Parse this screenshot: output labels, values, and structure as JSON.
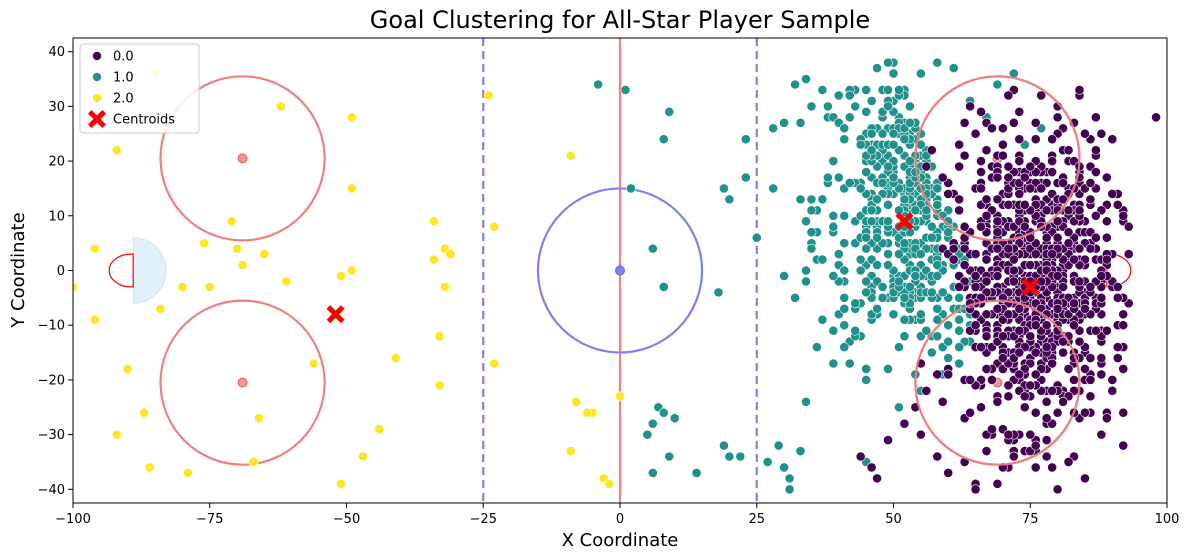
{
  "chart_data": {
    "type": "scatter",
    "title": "Goal Clustering for All-Star Player Sample",
    "xlabel": "X Coordinate",
    "ylabel": "Y Coordinate",
    "xlim": [
      -100,
      100
    ],
    "ylim": [
      -42.5,
      42.5
    ],
    "xticks": [
      -100,
      -75,
      -50,
      -25,
      0,
      25,
      50,
      75,
      100
    ],
    "xtick_labels": [
      "−100",
      "−75",
      "−50",
      "−25",
      "0",
      "25",
      "50",
      "75",
      "100"
    ],
    "yticks": [
      -40,
      -30,
      -20,
      -10,
      0,
      10,
      20,
      30,
      40
    ],
    "ytick_labels": [
      "−40",
      "−30",
      "−20",
      "−10",
      "0",
      "10",
      "20",
      "30",
      "40"
    ],
    "grid": false,
    "legend_position": "top-left",
    "series": [
      {
        "name": "0.0",
        "color": "#440154",
        "dense_regions": [
          {
            "cx": 75,
            "cy": -2,
            "sx": 7.5,
            "sy": 13,
            "n": 900,
            "xmin": 54,
            "xmax": 93,
            "ymin": -40,
            "ymax": 34,
            "xcut": true
          }
        ],
        "points": [
          [
            98,
            28
          ],
          [
            84,
            33
          ],
          [
            80,
            -40
          ],
          [
            85,
            -38
          ],
          [
            92,
            -32
          ],
          [
            92,
            -26
          ],
          [
            89,
            -27
          ],
          [
            88,
            -30
          ],
          [
            90,
            -22
          ],
          [
            92,
            -18
          ],
          [
            92,
            -10
          ],
          [
            93,
            8
          ],
          [
            92,
            10
          ],
          [
            91,
            -5
          ],
          [
            46,
            -36
          ],
          [
            47,
            -38
          ],
          [
            44,
            -34
          ],
          [
            49,
            -31
          ],
          [
            52,
            -28
          ],
          [
            60,
            -37
          ],
          [
            63,
            -35
          ],
          [
            67,
            -33
          ],
          [
            70,
            -36
          ],
          [
            69,
            -39
          ],
          [
            72,
            -34
          ],
          [
            76,
            -36
          ],
          [
            78,
            -31
          ],
          [
            82,
            -35
          ],
          [
            80,
            -26
          ],
          [
            75,
            -30
          ],
          [
            58,
            -34
          ],
          [
            55,
            -30
          ],
          [
            77,
            32
          ],
          [
            80,
            30
          ],
          [
            83,
            27
          ],
          [
            76,
            27
          ],
          [
            73,
            24
          ],
          [
            79,
            24
          ]
        ]
      },
      {
        "name": "1.0",
        "color": "#21918c",
        "dense_regions": [
          {
            "cx": 54,
            "cy": 12,
            "sx": 9,
            "sy": 14,
            "n": 520,
            "xmin": 28,
            "xmax": 74,
            "ymin": -40,
            "ymax": 38,
            "xcut": false
          }
        ],
        "points": [
          [
            1,
            33
          ],
          [
            -4,
            34
          ],
          [
            9,
            29
          ],
          [
            8,
            24
          ],
          [
            2,
            15
          ],
          [
            6,
            4
          ],
          [
            8,
            -3
          ],
          [
            7,
            -25
          ],
          [
            8,
            -26
          ],
          [
            10,
            -27
          ],
          [
            6,
            -28
          ],
          [
            5,
            -30
          ],
          [
            9,
            -34
          ],
          [
            6,
            -37
          ],
          [
            14,
            -37
          ],
          [
            19,
            -32
          ],
          [
            20,
            -34
          ],
          [
            22,
            -34
          ],
          [
            23,
            24
          ],
          [
            23,
            17
          ],
          [
            18,
            -4
          ],
          [
            19,
            15
          ],
          [
            20,
            13
          ],
          [
            25,
            6
          ],
          [
            27,
            -35
          ],
          [
            31,
            -40
          ],
          [
            29,
            -32
          ],
          [
            30,
            -36
          ],
          [
            31,
            -38
          ],
          [
            33,
            -33
          ],
          [
            32,
            34
          ],
          [
            34,
            35
          ],
          [
            37,
            33
          ],
          [
            49,
            38
          ],
          [
            72,
            36
          ],
          [
            69,
            34
          ],
          [
            58,
            38
          ],
          [
            61,
            37
          ],
          [
            71,
            32
          ],
          [
            77,
            26
          ],
          [
            74,
            23
          ],
          [
            67,
            28
          ],
          [
            64,
            31
          ],
          [
            55,
            36
          ]
        ]
      },
      {
        "name": "2.0",
        "color": "#fde725",
        "dense_regions": [],
        "points": [
          [
            -85,
            36
          ],
          [
            -24,
            32
          ],
          [
            -92,
            22
          ],
          [
            -9,
            21
          ],
          [
            -62,
            30
          ],
          [
            -49,
            28
          ],
          [
            -49,
            15
          ],
          [
            -23,
            8
          ],
          [
            -34,
            9
          ],
          [
            -71,
            9
          ],
          [
            -76,
            5
          ],
          [
            -70,
            4
          ],
          [
            -65,
            3
          ],
          [
            -69,
            1
          ],
          [
            -96,
            4
          ],
          [
            -32,
            4
          ],
          [
            -31,
            3
          ],
          [
            -34,
            2
          ],
          [
            -49,
            0
          ],
          [
            -51,
            -1
          ],
          [
            -61,
            -2
          ],
          [
            -80,
            -3
          ],
          [
            -100,
            -3
          ],
          [
            -75,
            -3
          ],
          [
            -32,
            -3
          ],
          [
            -84,
            -7
          ],
          [
            -96,
            -9
          ],
          [
            -33,
            -12
          ],
          [
            -41,
            -16
          ],
          [
            -23,
            -17
          ],
          [
            -56,
            -17
          ],
          [
            -90,
            -18
          ],
          [
            -33,
            -21
          ],
          [
            -8,
            -24
          ],
          [
            -5,
            -26
          ],
          [
            -6,
            -26
          ],
          [
            -87,
            -26
          ],
          [
            -66,
            -27
          ],
          [
            -44,
            -29
          ],
          [
            -92,
            -30
          ],
          [
            -9,
            -33
          ],
          [
            -47,
            -34
          ],
          [
            -67,
            -35
          ],
          [
            -86,
            -36
          ],
          [
            -79,
            -37
          ],
          [
            -3,
            -38
          ],
          [
            -2,
            -39
          ],
          [
            -51,
            -39
          ],
          [
            0,
            -23
          ]
        ]
      }
    ],
    "centroids": {
      "name": "Centroids",
      "color": "#ff0000",
      "points": [
        [
          75,
          -3
        ],
        [
          52,
          9
        ],
        [
          -52,
          -8
        ]
      ]
    },
    "rink": {
      "center_line_x": 0,
      "blue_lines_x": [
        -25,
        25
      ],
      "center_circle": {
        "x": 0,
        "y": 0,
        "r": 15
      },
      "faceoff_circles": [
        {
          "x": -69,
          "y": 20.5,
          "r": 15
        },
        {
          "x": -69,
          "y": -20.5,
          "r": 15
        },
        {
          "x": 69,
          "y": 20.5,
          "r": 15
        },
        {
          "x": 69,
          "y": -20.5,
          "r": 15
        }
      ],
      "goal_creases": [
        {
          "x": -89,
          "y": 0,
          "r": 6
        }
      ],
      "nets": [
        {
          "x": -89,
          "side": "left"
        },
        {
          "x": 89,
          "side": "right"
        }
      ],
      "colors": {
        "faceoff": "#f08080",
        "center": "#8080f0",
        "crease": "#dff0f8",
        "net": "#ff0000"
      }
    }
  }
}
